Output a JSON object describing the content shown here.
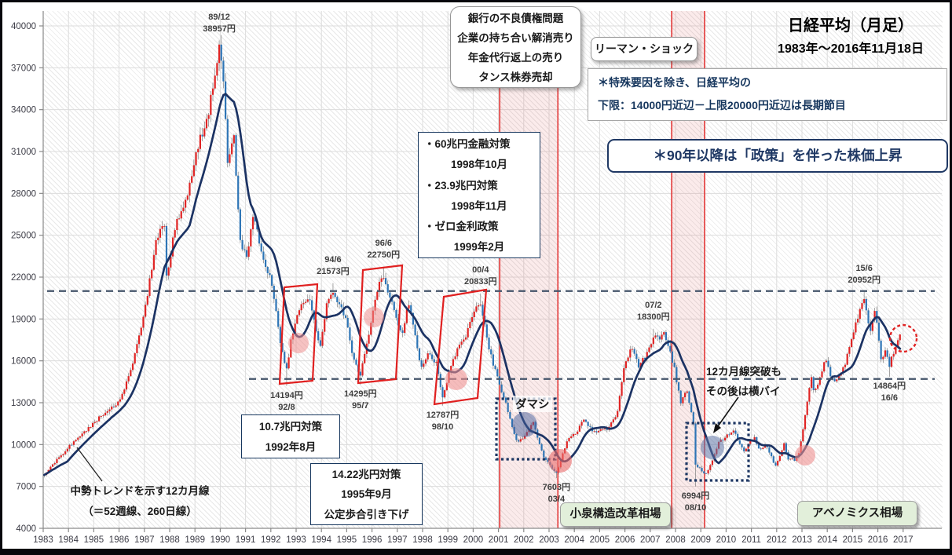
{
  "header": {
    "title": "日経平均（月足）",
    "period": "1983年～2016年11月18日"
  },
  "boxes": {
    "selling": [
      "銀行の不良債権問題",
      "企業の持ち合い解消売り",
      "年金代行返上の売り",
      "タンス株券売却"
    ],
    "lehman": "リーマン・ショック",
    "range_note": [
      "＊特殊要因を除き、日経平均の",
      "下限：14000円近辺－上限20000円近辺は長期節目"
    ],
    "policy": "＊90年以降は「政策」を伴った株価上昇",
    "measures_1998": [
      "・60兆円金融対策",
      "1998年10月",
      "・23.9兆円対策",
      "1998年11月",
      "・ゼロ金利政策",
      "1999年2月"
    ],
    "measure_1992": [
      "10.7兆円対策",
      "1992年8月"
    ],
    "measure_1995": [
      "14.22兆円対策",
      "1995年9月",
      "公定歩合引き下げ"
    ],
    "trend_note": [
      "中勢トレンドを示す12カ月線",
      "（＝52週線、260日線）"
    ],
    "damashi": "ダマシ",
    "breakout_note": [
      "12カ月線突破も",
      "その後は横バイ"
    ],
    "koizumi": "小泉構造改革相場",
    "abenomics": "アベノミクス相場"
  },
  "chart_data": {
    "type": "candlestick",
    "instrument": "日経平均",
    "interval": "月足",
    "ylim": [
      4000,
      40000
    ],
    "y_ticks": [
      4000,
      7000,
      10000,
      13000,
      16000,
      19000,
      22000,
      25000,
      28000,
      31000,
      34000,
      37000,
      40000
    ],
    "x_ticks": [
      1983,
      1984,
      1985,
      1986,
      1987,
      1988,
      1989,
      1990,
      1991,
      1992,
      1993,
      1994,
      1995,
      1996,
      1997,
      1998,
      1999,
      2000,
      2001,
      2002,
      2003,
      2004,
      2005,
      2006,
      2007,
      2008,
      2009,
      2010,
      2011,
      2012,
      2013,
      2014,
      2015,
      2016,
      2017
    ],
    "moving_average_window": 12,
    "hlines": [
      {
        "value": 21000,
        "note": "上限20000円近辺（長期節目）"
      },
      {
        "value": 14700,
        "note": "下限14000円近辺（長期節目）"
      }
    ],
    "bands": [
      {
        "from": 2001.05,
        "to": 2003.35
      },
      {
        "from": 2007.85,
        "to": 2009.15
      }
    ],
    "key_points": [
      {
        "date": "89/12",
        "price": 38957,
        "kind": "high"
      },
      {
        "date": "94/6",
        "price": 21573,
        "kind": "high"
      },
      {
        "date": "96/6",
        "price": 22750,
        "kind": "high"
      },
      {
        "date": "00/4",
        "price": 20833,
        "kind": "high"
      },
      {
        "date": "07/2",
        "price": 18300,
        "kind": "high"
      },
      {
        "date": "15/6",
        "price": 20952,
        "kind": "high"
      },
      {
        "date": "92/8",
        "price": 14194,
        "kind": "low"
      },
      {
        "date": "95/7",
        "price": 14295,
        "kind": "low"
      },
      {
        "date": "98/10",
        "price": 12787,
        "kind": "low"
      },
      {
        "date": "03/4",
        "price": 7603,
        "kind": "low"
      },
      {
        "date": "08/10",
        "price": 6994,
        "kind": "low"
      },
      {
        "date": "16/6",
        "price": 14864,
        "kind": "low"
      }
    ],
    "anchors": [
      [
        1983.04,
        7900
      ],
      [
        1983.5,
        8800
      ],
      [
        1984.04,
        9900
      ],
      [
        1984.5,
        10600
      ],
      [
        1985.04,
        11600
      ],
      [
        1985.6,
        12600
      ],
      [
        1986.04,
        13100
      ],
      [
        1986.5,
        15500
      ],
      [
        1987.04,
        19800
      ],
      [
        1987.45,
        24500
      ],
      [
        1987.79,
        26000
      ],
      [
        1987.88,
        21800
      ],
      [
        1988.2,
        25500
      ],
      [
        1988.7,
        28000
      ],
      [
        1989.04,
        31000
      ],
      [
        1989.5,
        33500
      ],
      [
        1989.96,
        38400
      ],
      [
        1990.12,
        36500
      ],
      [
        1990.3,
        29800
      ],
      [
        1990.54,
        32000
      ],
      [
        1990.79,
        24500
      ],
      [
        1991.04,
        23300
      ],
      [
        1991.29,
        26500
      ],
      [
        1991.7,
        23500
      ],
      [
        1992.04,
        21500
      ],
      [
        1992.37,
        17500
      ],
      [
        1992.62,
        15300
      ],
      [
        1992.8,
        17500
      ],
      [
        1993.2,
        20200
      ],
      [
        1993.54,
        20300
      ],
      [
        1993.95,
        16800
      ],
      [
        1994.2,
        20000
      ],
      [
        1994.45,
        20800
      ],
      [
        1994.95,
        19200
      ],
      [
        1995.2,
        16500
      ],
      [
        1995.54,
        14900
      ],
      [
        1995.9,
        18300
      ],
      [
        1996.2,
        21000
      ],
      [
        1996.45,
        22200
      ],
      [
        1996.95,
        19000
      ],
      [
        1997.2,
        18000
      ],
      [
        1997.45,
        20200
      ],
      [
        1997.95,
        15500
      ],
      [
        1998.2,
        16600
      ],
      [
        1998.54,
        15800
      ],
      [
        1998.79,
        13400
      ],
      [
        1999.2,
        16200
      ],
      [
        1999.7,
        17800
      ],
      [
        2000.04,
        19500
      ],
      [
        2000.29,
        20200
      ],
      [
        2000.6,
        17000
      ],
      [
        2000.95,
        14800
      ],
      [
        2001.2,
        13500
      ],
      [
        2001.7,
        10200
      ],
      [
        2001.95,
        10500
      ],
      [
        2002.37,
        11600
      ],
      [
        2002.8,
        9100
      ],
      [
        2003.04,
        8500
      ],
      [
        2003.29,
        7900
      ],
      [
        2003.7,
        10200
      ],
      [
        2004.12,
        11000
      ],
      [
        2004.37,
        11800
      ],
      [
        2004.79,
        10900
      ],
      [
        2005.29,
        11100
      ],
      [
        2005.7,
        12300
      ],
      [
        2005.95,
        15500
      ],
      [
        2006.29,
        17000
      ],
      [
        2006.54,
        15500
      ],
      [
        2006.95,
        16800
      ],
      [
        2007.12,
        17700
      ],
      [
        2007.37,
        17500
      ],
      [
        2007.54,
        18100
      ],
      [
        2007.95,
        15500
      ],
      [
        2008.2,
        13000
      ],
      [
        2008.45,
        14000
      ],
      [
        2008.71,
        11500
      ],
      [
        2008.79,
        8600
      ],
      [
        2009.12,
        7900
      ],
      [
        2009.29,
        8100
      ],
      [
        2009.7,
        10100
      ],
      [
        2009.95,
        10500
      ],
      [
        2010.29,
        11100
      ],
      [
        2010.7,
        9400
      ],
      [
        2010.95,
        10200
      ],
      [
        2011.12,
        10500
      ],
      [
        2011.29,
        9700
      ],
      [
        2011.6,
        9850
      ],
      [
        2011.95,
        8500
      ],
      [
        2012.29,
        10000
      ],
      [
        2012.45,
        9000
      ],
      [
        2012.7,
        8900
      ],
      [
        2012.87,
        9400
      ],
      [
        2013.04,
        11100
      ],
      [
        2013.37,
        14800
      ],
      [
        2013.45,
        13800
      ],
      [
        2013.62,
        14300
      ],
      [
        2013.95,
        16200
      ],
      [
        2014.12,
        14900
      ],
      [
        2014.37,
        14500
      ],
      [
        2014.7,
        15700
      ],
      [
        2014.95,
        17600
      ],
      [
        2015.29,
        19500
      ],
      [
        2015.45,
        20500
      ],
      [
        2015.7,
        18200
      ],
      [
        2015.9,
        19600
      ],
      [
        2016.12,
        16100
      ],
      [
        2016.29,
        16700
      ],
      [
        2016.45,
        15600
      ],
      [
        2016.62,
        16600
      ],
      [
        2016.79,
        17400
      ],
      [
        2016.87,
        17950
      ]
    ]
  },
  "colors": {
    "up_candle": "#e02424",
    "down_candle": "#2e75b6",
    "wick": "#7f7f7f",
    "moving_average": "#1b3263",
    "band_border": "#e23535",
    "band_fill": "rgba(220,90,90,0.12)",
    "dashed_level_line": "#44546a",
    "grid": "#dcdcdc",
    "navy_annotation": "#1f3864",
    "green_box_bg": "#e2efda",
    "red_marker": "#e02020"
  }
}
